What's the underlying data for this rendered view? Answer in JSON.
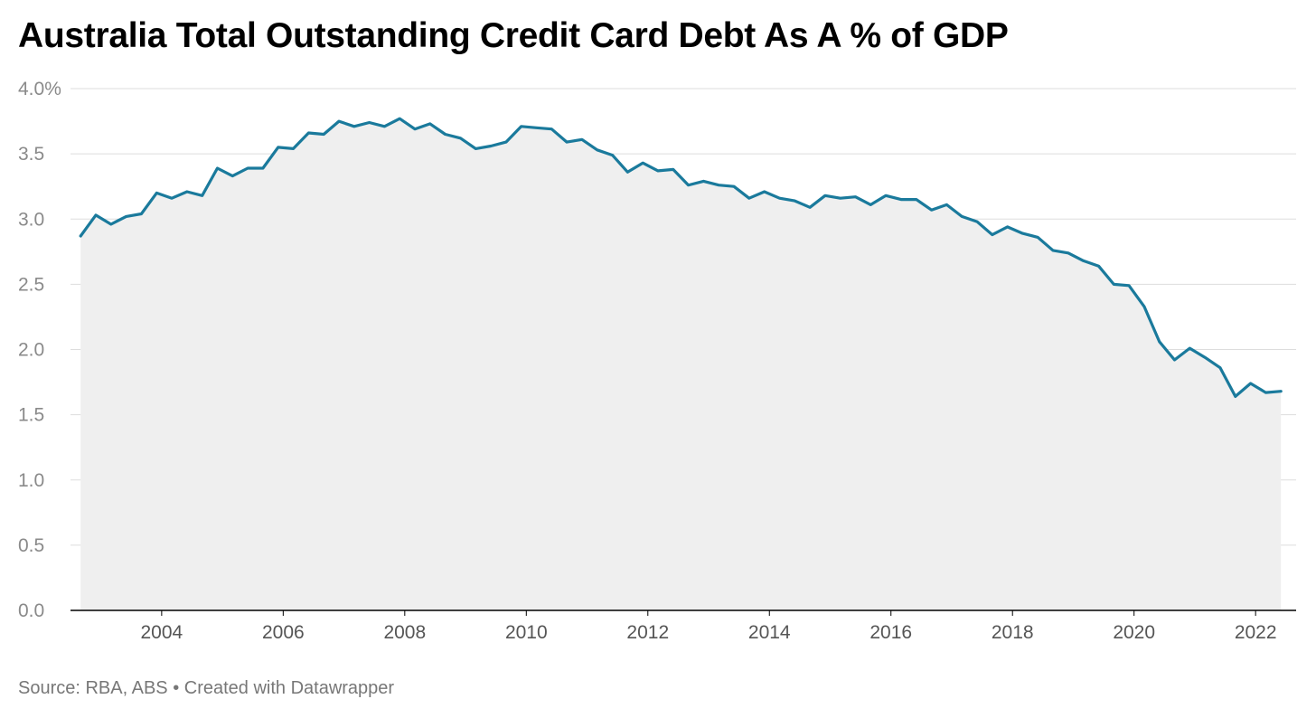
{
  "chart_data": {
    "type": "area",
    "title": "Australia Total Outstanding Credit Card Debt As A % of GDP",
    "source": "Source: RBA, ABS • Created with Datawrapper",
    "xlabel": "",
    "ylabel": "",
    "ylim": [
      0,
      4
    ],
    "xlim": [
      "2002-07",
      "2022-09"
    ],
    "y_ticks": [
      0,
      0.5,
      1,
      1.5,
      2,
      2.5,
      3,
      3.5,
      4
    ],
    "y_tick_labels": [
      "0.0",
      "0.5",
      "1.0",
      "1.5",
      "2.0",
      "2.5",
      "3.0",
      "3.5",
      "4.0%"
    ],
    "x_ticks": [
      "2004",
      "2006",
      "2008",
      "2010",
      "2012",
      "2014",
      "2016",
      "2018",
      "2020",
      "2022"
    ],
    "grid": "horizontal",
    "colors": {
      "line": "#1a7a9c",
      "area": "#efefef",
      "grid": "#dddddd",
      "baseline": "#000000"
    },
    "series": [
      {
        "x": [
          "2002-09",
          "2002-12",
          "2003-03",
          "2003-06",
          "2003-09",
          "2003-12",
          "2004-03",
          "2004-06",
          "2004-09",
          "2004-12",
          "2005-03",
          "2005-06",
          "2005-09",
          "2005-12",
          "2006-03",
          "2006-06",
          "2006-09",
          "2006-12",
          "2007-03",
          "2007-06",
          "2007-09",
          "2007-12",
          "2008-03",
          "2008-06",
          "2008-09",
          "2008-12",
          "2009-03",
          "2009-06",
          "2009-09",
          "2009-12",
          "2010-03",
          "2010-06",
          "2010-09",
          "2010-12",
          "2011-03",
          "2011-06",
          "2011-09",
          "2011-12",
          "2012-03",
          "2012-06",
          "2012-09",
          "2012-12",
          "2013-03",
          "2013-06",
          "2013-09",
          "2013-12",
          "2014-03",
          "2014-06",
          "2014-09",
          "2014-12",
          "2015-03",
          "2015-06",
          "2015-09",
          "2015-12",
          "2016-03",
          "2016-06",
          "2016-09",
          "2016-12",
          "2017-03",
          "2017-06",
          "2017-09",
          "2017-12",
          "2018-03",
          "2018-06",
          "2018-09",
          "2018-12",
          "2019-03",
          "2019-06",
          "2019-09",
          "2019-12",
          "2020-03",
          "2020-06",
          "2020-09",
          "2020-12",
          "2021-03",
          "2021-06",
          "2021-09",
          "2021-12",
          "2022-03",
          "2022-06"
        ],
        "values": [
          2.87,
          3.03,
          2.96,
          3.02,
          3.04,
          3.2,
          3.16,
          3.21,
          3.18,
          3.39,
          3.33,
          3.39,
          3.39,
          3.55,
          3.54,
          3.66,
          3.65,
          3.75,
          3.71,
          3.74,
          3.71,
          3.77,
          3.69,
          3.73,
          3.65,
          3.62,
          3.54,
          3.56,
          3.59,
          3.71,
          3.7,
          3.69,
          3.59,
          3.61,
          3.53,
          3.49,
          3.36,
          3.43,
          3.37,
          3.38,
          3.26,
          3.29,
          3.26,
          3.25,
          3.16,
          3.21,
          3.16,
          3.14,
          3.09,
          3.18,
          3.16,
          3.17,
          3.11,
          3.18,
          3.15,
          3.15,
          3.07,
          3.11,
          3.02,
          2.98,
          2.88,
          2.94,
          2.89,
          2.86,
          2.76,
          2.74,
          2.68,
          2.64,
          2.5,
          2.49,
          2.33,
          2.06,
          1.92,
          2.01,
          1.94,
          1.86,
          1.64,
          1.74,
          1.67,
          1.68
        ]
      }
    ]
  }
}
